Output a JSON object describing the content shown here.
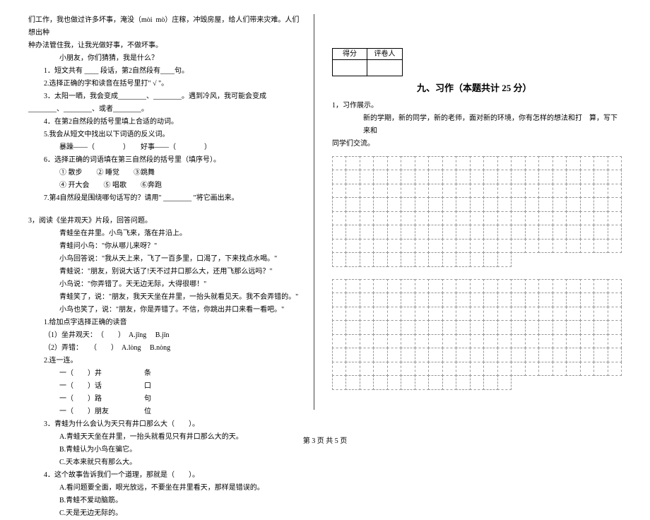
{
  "left": {
    "l0": "们工作，我也做过许多坏事，淹没（mòi  mò）庄稼，冲毁房屋，给人们带来灾难。人们想出种",
    "l1": "种办法管住我，让我光做好事，不做坏事。",
    "l2": "小朋友，你们猜猜，我是什么？",
    "l3": "1．短文共有 ____ 段话，第2自然段有____句。",
    "l4": "2.选择正确的字和读音在括号里打\" √ \"。",
    "l5": "3．太阳一晒，我会变成________、________。遇到冷风，我可能会变成",
    "l6": "________、________、或者________。",
    "l7": "4．在第2自然段的括号里填上合适的动词。",
    "l8": "5.我会从短文中找出以下词语的反义词。",
    "l9": "暴躁——（　　　　）　　好事——（　　　　）",
    "l10": "6．选择正确的词语填在第三自然段的括号里（填序号）。",
    "l11": "① 散步　　② 睡觉　　③跳舞",
    "l12": "④ 开大会　　⑤ 唱歌　　⑥奔跑",
    "l13": "7.第4自然段是围绕哪句话写的？请用\" ________ \"将它画出来。",
    "q3": "3，阅读《坐井观天》片段，回答问题。",
    "p1": "青蛙坐在井里。小鸟飞来，落在井沿上。",
    "p2": "青蛙问小鸟：\"你从哪儿来呀？\"",
    "p3": "小鸟回答说：\"我从天上来，飞了一百多里，口渴了，下来找点水喝。\"",
    "p4": "青蛙说：\"朋友，别说大话了!天不过井口那么大，还用飞那么远吗？\"",
    "p5": "小鸟说：\"你弄错了。天无边无际，大得很哪！\"",
    "p6": "青蛙笑了，说：\"朋友，我天天坐在井里，一抬头就看见天。我不会弄错的。\"",
    "p7": "小鸟也笑了，说：\"朋友，你是弄错了。不信，你跳出井口来看一看吧。\"",
    "s1": "1.给加点字选择正确的读音",
    "s1a": "（1）坐井观天：　（　　）　A.jīng　 B.jǐn",
    "s1b": "（2）弄错：　　（　　）　A.lòng　 B.nòng",
    "s2": "2.连一连。",
    "s2a": "一（　　）井　　　　　　条",
    "s2b": "一（　　）话　　　　　　口",
    "s2c": "一（　　）路　　　　　　句",
    "s2d": "一（　　）朋友　　　　　位",
    "s3": "3．青蛙为什么会认为天只有井口那么大（　　）。",
    "s3a": "A.青蛙天天坐在井里，一抬头就看见只有井口那么大的天。",
    "s3b": "B.青蛙认为小鸟在骗它。",
    "s3c": "C.天本来就只有那么大。",
    "s4": "4．这个故事告诉我们一个道理，那就是（　　）。",
    "s4a": "A.看问题要全面，眼光放远，不要坐在井里看天，那样是错误的。",
    "s4b": "B.青蛙不爱动脑筋。",
    "s4c": "C.天是无边无际的。"
  },
  "right": {
    "score_head1": "得分",
    "score_head2": "评卷人",
    "section_title": "九、习作（本题共计 25 分）",
    "t1": "1，习作展示。",
    "t2": "新的学期，新的同学，新的老师，面对新的环境，你有怎样的想法和打　算，写下来和",
    "t3": "同学们交流。",
    "grid1": {
      "cols": 20,
      "rows": 8
    },
    "grid2": {
      "cols": 20,
      "rows": 8
    }
  },
  "footer": "第 3 页 共 5 页"
}
